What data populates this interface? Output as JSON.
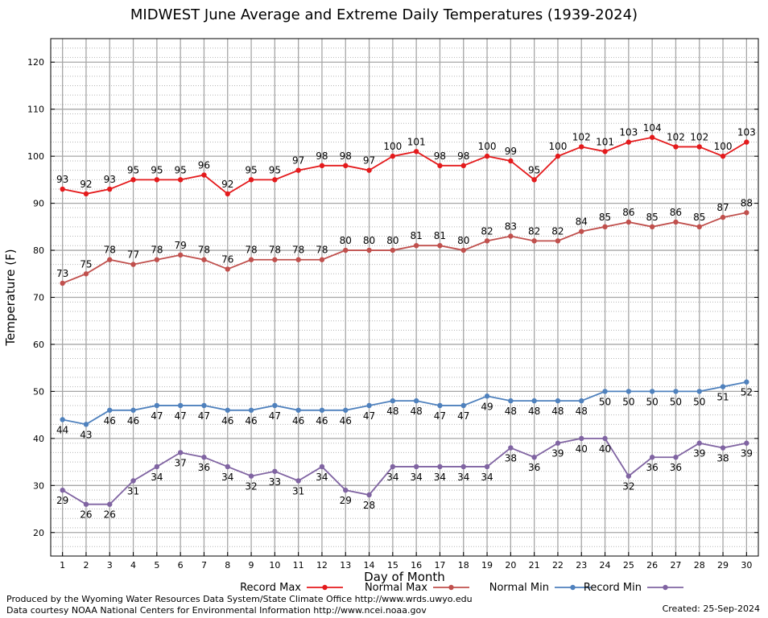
{
  "title": "MIDWEST June Average and Extreme Daily Temperatures (1939-2024)",
  "credits": {
    "line1": "Produced by the Wyoming Water Resources Data System/State Climate Office http://www.wrds.uwyo.edu",
    "line2": "Data courtesy NOAA National Centers for Environmental Information http://www.ncei.noaa.gov",
    "created": "Created: 25-Sep-2024"
  },
  "chart_data": {
    "type": "line",
    "xlabel": "Day of Month",
    "ylabel": "Temperature (F)",
    "xlim": [
      0.5,
      30.5
    ],
    "ylim": [
      15,
      125
    ],
    "yticks": [
      20,
      30,
      40,
      50,
      60,
      70,
      80,
      90,
      100,
      110,
      120
    ],
    "x": [
      1,
      2,
      3,
      4,
      5,
      6,
      7,
      8,
      9,
      10,
      11,
      12,
      13,
      14,
      15,
      16,
      17,
      18,
      19,
      20,
      21,
      22,
      23,
      24,
      25,
      26,
      27,
      28,
      29,
      30
    ],
    "grid": true,
    "legend_position": "bottom",
    "series": [
      {
        "name": "Record Max",
        "color": "#e41a1c",
        "label_position": "above",
        "values": [
          93,
          92,
          93,
          95,
          95,
          95,
          96,
          92,
          95,
          95,
          97,
          98,
          98,
          97,
          100,
          101,
          98,
          98,
          100,
          99,
          95,
          100,
          102,
          101,
          103,
          104,
          102,
          102,
          100,
          103
        ]
      },
      {
        "name": "Normal Max",
        "color": "#c0504d",
        "label_position": "above",
        "values": [
          73,
          75,
          78,
          77,
          78,
          79,
          78,
          76,
          78,
          78,
          78,
          78,
          80,
          80,
          80,
          81,
          81,
          80,
          82,
          83,
          82,
          82,
          84,
          85,
          86,
          85,
          86,
          85,
          87,
          88
        ]
      },
      {
        "name": "Normal Min",
        "color": "#4f81bd",
        "label_position": "below",
        "values": [
          44,
          43,
          46,
          46,
          47,
          47,
          47,
          46,
          46,
          47,
          46,
          46,
          46,
          47,
          48,
          48,
          47,
          47,
          49,
          48,
          48,
          48,
          48,
          50,
          50,
          50,
          50,
          50,
          51,
          52
        ]
      },
      {
        "name": "Record Min",
        "color": "#8064a2",
        "label_position": "below",
        "values": [
          29,
          26,
          26,
          31,
          34,
          37,
          36,
          34,
          32,
          33,
          31,
          34,
          29,
          28,
          34,
          34,
          34,
          34,
          34,
          38,
          36,
          39,
          40,
          40,
          32,
          36,
          36,
          39,
          38,
          39
        ]
      }
    ]
  }
}
